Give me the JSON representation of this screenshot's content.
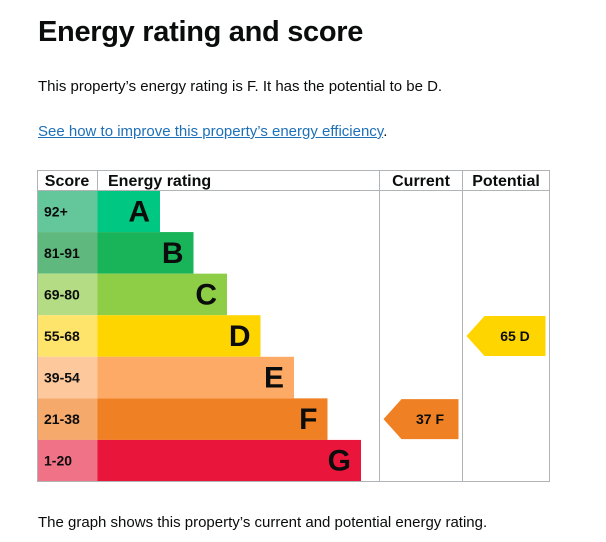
{
  "page": {
    "title": "Energy rating and score",
    "summary": "This property’s energy rating is F. It has the potential to be D.",
    "link_text": "See how to improve this property’s energy efficiency",
    "link_suffix": ".",
    "caption": "The graph shows this property’s current and potential energy rating."
  },
  "chart_data": {
    "type": "bar",
    "headers": {
      "score": "Score",
      "rating": "Energy rating",
      "current": "Current",
      "potential": "Potential"
    },
    "bands": [
      {
        "letter": "A",
        "range": "92+",
        "color": "#00c781",
        "range_color": "#64c79b"
      },
      {
        "letter": "B",
        "range": "81-91",
        "color": "#19b459",
        "range_color": "#5fb97f"
      },
      {
        "letter": "C",
        "range": "69-80",
        "color": "#8dce46",
        "range_color": "#b3dc84"
      },
      {
        "letter": "D",
        "range": "55-68",
        "color": "#ffd500",
        "range_color": "#ffe46b"
      },
      {
        "letter": "E",
        "range": "39-54",
        "color": "#fcaa65",
        "range_color": "#fdc89b"
      },
      {
        "letter": "F",
        "range": "21-38",
        "color": "#ef8023",
        "range_color": "#f5a96b"
      },
      {
        "letter": "G",
        "range": "1-20",
        "color": "#e9153b",
        "range_color": "#f07286"
      }
    ],
    "current": {
      "score": 37,
      "rating": "F",
      "label": "37  F",
      "color": "#ef8023"
    },
    "potential": {
      "score": 65,
      "rating": "D",
      "label": "65  D",
      "color": "#ffd500"
    }
  }
}
